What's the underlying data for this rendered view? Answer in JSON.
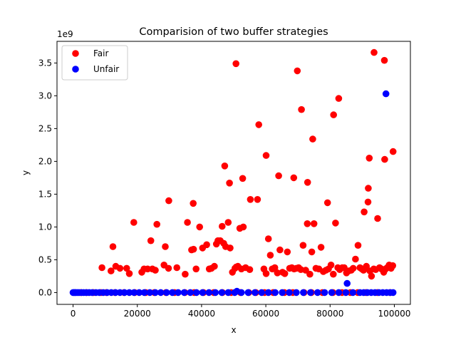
{
  "chart_data": {
    "type": "scatter",
    "title": "Comparision of two buffer strategies",
    "xlabel": "x",
    "ylabel": "y",
    "y_offset_label": "1e9",
    "xlim": [
      -5000,
      105000
    ],
    "ylim": [
      -0.18,
      3.83
    ],
    "x_ticks": [
      0,
      20000,
      40000,
      60000,
      80000,
      100000
    ],
    "y_ticks": [
      0.0,
      0.5,
      1.0,
      1.5,
      2.0,
      2.5,
      3.0,
      3.5
    ],
    "y_tick_labels": [
      "0.0",
      "0.5",
      "1.0",
      "1.5",
      "2.0",
      "2.5",
      "3.0",
      "3.5"
    ],
    "grid": false,
    "legend_position": "top-left",
    "colors": {
      "Fair": "#ff0000",
      "Unfair": "#0000ff"
    },
    "series": [
      {
        "name": "Fair",
        "x": [
          9000,
          11800,
          12400,
          13300,
          14600,
          16700,
          17500,
          18900,
          21400,
          22100,
          23200,
          24200,
          24700,
          25600,
          26100,
          28300,
          28700,
          29700,
          32300,
          34900,
          35600,
          36900,
          37500,
          38300,
          39400,
          40300,
          41600,
          42400,
          43100,
          44000,
          44600,
          45100,
          45800,
          46400,
          46900,
          47500,
          48300,
          48900,
          49600,
          50400,
          50800,
          51300,
          51900,
          52400,
          53000,
          53700,
          55000,
          57800,
          59400,
          60100,
          60800,
          61400,
          62000,
          62800,
          63600,
          64400,
          65200,
          65900,
          66700,
          67400,
          68100,
          68800,
          69500,
          70200,
          70900,
          71600,
          72400,
          73000,
          73700,
          74300,
          75000,
          75600,
          76500,
          77200,
          77900,
          78700,
          79500,
          80300,
          81000,
          81700,
          82400,
          83000,
          83800,
          84400,
          85100,
          85800,
          86600,
          87200,
          87900,
          88700,
          89300,
          89900,
          90400,
          90900,
          91300,
          91800,
          92400,
          92900,
          93600,
          94200,
          94800,
          95400,
          96000,
          96700,
          97300,
          97800,
          98400,
          99000,
          99500,
          29800,
          50700,
          52800,
          60100,
          68700,
          69800,
          71100,
          72900,
          81100,
          82700,
          93700,
          97000,
          99600,
          47200,
          55200,
          64000,
          74600,
          90600,
          91900,
          96900,
          37400,
          48700,
          57400,
          79200,
          92200
        ],
        "y": [
          0.38,
          0.33,
          0.7,
          0.4,
          0.37,
          0.37,
          0.29,
          1.07,
          0.31,
          0.36,
          0.36,
          0.79,
          0.36,
          0.34,
          1.04,
          0.42,
          0.7,
          0.37,
          0.38,
          0.28,
          1.07,
          0.65,
          0.66,
          0.36,
          1.0,
          0.68,
          0.73,
          0.36,
          0.37,
          0.4,
          0.74,
          0.79,
          0.79,
          1.01,
          0.75,
          0.7,
          1.07,
          0.68,
          0.31,
          0.37,
          0.39,
          0.4,
          0.98,
          0.36,
          1.0,
          0.38,
          0.35,
          2.56,
          0.36,
          0.29,
          0.82,
          0.57,
          0.36,
          0.38,
          0.3,
          0.65,
          0.31,
          0.29,
          0.62,
          0.37,
          0.38,
          0.36,
          0.37,
          0.38,
          0.35,
          0.72,
          0.34,
          1.68,
          0.28,
          0.62,
          1.05,
          0.37,
          0.36,
          0.69,
          0.32,
          0.34,
          0.36,
          0.42,
          0.28,
          1.06,
          0.38,
          0.35,
          0.38,
          0.38,
          0.3,
          0.33,
          0.34,
          0.37,
          0.51,
          0.72,
          0.38,
          0.36,
          0.34,
          0.37,
          0.4,
          1.38,
          0.33,
          0.25,
          0.36,
          0.35,
          1.13,
          0.38,
          0.36,
          0.31,
          0.36,
          0.38,
          0.42,
          0.37,
          0.41,
          1.4,
          3.49,
          1.74,
          2.09,
          1.75,
          3.38,
          2.79,
          1.05,
          2.71,
          2.96,
          3.66,
          2.03,
          2.15,
          1.93,
          1.42,
          1.78,
          2.34,
          1.23,
          1.59,
          3.54,
          1.36,
          1.67,
          1.42,
          1.37,
          2.05
        ],
        "zero_row_x": [
          2500,
          4200,
          6300,
          8700,
          10400,
          13100,
          15900,
          19200,
          22600,
          25300,
          28900,
          31600,
          34800,
          37700,
          40600,
          43800,
          46500,
          49200,
          52100,
          54700,
          56900,
          59600,
          62300,
          65800,
          68400,
          71900,
          74200,
          77600,
          80900,
          83700,
          86300,
          88600,
          91200,
          94700,
          98700
        ]
      },
      {
        "name": "Unfair",
        "x": [
          0,
          300,
          600,
          900,
          1400,
          1900,
          2600,
          3300,
          4100,
          5000,
          6000,
          7100,
          8200,
          9400,
          10600,
          11900,
          13200,
          14600,
          16000,
          17500,
          19000,
          20600,
          22200,
          23900,
          25600,
          27300,
          29100,
          30900,
          32700,
          34600,
          36500,
          38400,
          40300,
          42300,
          44300,
          46300,
          48300,
          50300,
          51000,
          52400,
          54500,
          56600,
          58700,
          60800,
          62900,
          65100,
          67300,
          69500,
          71700,
          73900,
          76100,
          78300,
          80500,
          82700,
          84900,
          87100,
          89300,
          90500,
          91600,
          92800,
          94000,
          95200,
          96400,
          97600,
          98700,
          99600,
          97400,
          85300
        ],
        "y": [
          0.0,
          0.0,
          0.0,
          0.0,
          0.0,
          0.0,
          0.0,
          0.0,
          0.0,
          0.0,
          0.0,
          0.0,
          0.0,
          0.0,
          0.0,
          0.0,
          0.0,
          0.0,
          0.0,
          0.0,
          0.0,
          0.0,
          0.0,
          0.0,
          0.0,
          0.0,
          0.0,
          0.0,
          0.0,
          0.0,
          0.0,
          0.0,
          0.0,
          0.0,
          0.0,
          0.0,
          0.0,
          0.0,
          0.02,
          0.0,
          0.0,
          0.0,
          0.0,
          0.0,
          0.0,
          0.0,
          0.0,
          0.0,
          0.0,
          0.0,
          0.0,
          0.0,
          0.0,
          0.0,
          0.0,
          0.0,
          0.0,
          0.0,
          0.0,
          0.0,
          0.0,
          0.0,
          0.0,
          0.0,
          0.0,
          0.0,
          3.03,
          0.14
        ]
      }
    ]
  }
}
